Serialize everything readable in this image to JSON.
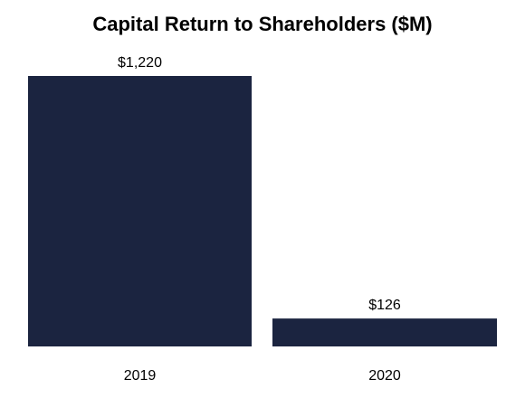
{
  "chart_data": {
    "type": "bar",
    "title": "Capital Return to Shareholders ($M)",
    "categories": [
      "2019",
      "2020"
    ],
    "values": [
      1220,
      126
    ],
    "data_labels": [
      "$1,220",
      "$126"
    ],
    "xlabel": "",
    "ylabel": "",
    "ylim": [
      0,
      1220
    ],
    "grid": false,
    "legend": "none",
    "bar_color": "#1b2440"
  }
}
